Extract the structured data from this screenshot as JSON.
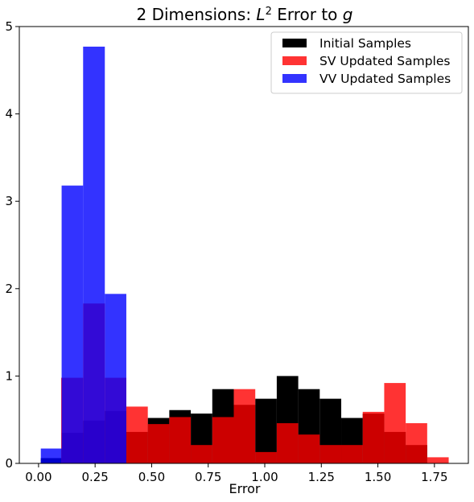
{
  "chart_data": {
    "type": "histogram",
    "title_main": "2 Dimensions: ",
    "title_math_base": "L",
    "title_math_sup": "2",
    "title_suffix": " Error to ",
    "title_math_var": "g",
    "xlabel": "Error",
    "ylabel": "",
    "xlim": [
      -0.085,
      1.9
    ],
    "ylim": [
      0,
      5
    ],
    "x_ticks": [
      0.0,
      0.25,
      0.5,
      0.75,
      1.0,
      1.25,
      1.5,
      1.75
    ],
    "x_tick_labels": [
      "0.00",
      "0.25",
      "0.50",
      "0.75",
      "1.00",
      "1.25",
      "1.50",
      "1.75"
    ],
    "y_ticks": [
      0,
      1,
      2,
      3,
      4,
      5
    ],
    "y_tick_labels": [
      "0",
      "1",
      "2",
      "3",
      "4",
      "5"
    ],
    "grid": false,
    "legend_position": "top-right",
    "series": [
      {
        "name": "Initial Samples",
        "color": "#000000",
        "opacity": 1.0,
        "bins": [
          {
            "x0": 0.01,
            "x1": 0.102,
            "y": 0.06
          },
          {
            "x0": 0.102,
            "x1": 0.197,
            "y": 0.35
          },
          {
            "x0": 0.197,
            "x1": 0.293,
            "y": 0.49
          },
          {
            "x0": 0.293,
            "x1": 0.388,
            "y": 0.6
          },
          {
            "x0": 0.388,
            "x1": 0.483,
            "y": 0.36
          },
          {
            "x0": 0.483,
            "x1": 0.578,
            "y": 0.52
          },
          {
            "x0": 0.578,
            "x1": 0.673,
            "y": 0.61
          },
          {
            "x0": 0.673,
            "x1": 0.768,
            "y": 0.57
          },
          {
            "x0": 0.768,
            "x1": 0.863,
            "y": 0.85
          },
          {
            "x0": 0.863,
            "x1": 0.958,
            "y": 0.67
          },
          {
            "x0": 0.958,
            "x1": 1.053,
            "y": 0.74
          },
          {
            "x0": 1.053,
            "x1": 1.148,
            "y": 1.0
          },
          {
            "x0": 1.148,
            "x1": 1.243,
            "y": 0.85
          },
          {
            "x0": 1.243,
            "x1": 1.338,
            "y": 0.74
          },
          {
            "x0": 1.338,
            "x1": 1.433,
            "y": 0.52
          },
          {
            "x0": 1.433,
            "x1": 1.528,
            "y": 0.57
          },
          {
            "x0": 1.528,
            "x1": 1.623,
            "y": 0.36
          },
          {
            "x0": 1.623,
            "x1": 1.718,
            "y": 0.21
          }
        ]
      },
      {
        "name": "SV Updated Samples",
        "color": "#ff0000",
        "opacity": 0.8,
        "bins": [
          {
            "x0": 0.1,
            "x1": 0.197,
            "y": 0.98
          },
          {
            "x0": 0.197,
            "x1": 0.293,
            "y": 1.83
          },
          {
            "x0": 0.293,
            "x1": 0.388,
            "y": 0.98
          },
          {
            "x0": 0.388,
            "x1": 0.483,
            "y": 0.65
          },
          {
            "x0": 0.483,
            "x1": 0.578,
            "y": 0.45
          },
          {
            "x0": 0.578,
            "x1": 0.673,
            "y": 0.53
          },
          {
            "x0": 0.673,
            "x1": 0.768,
            "y": 0.21
          },
          {
            "x0": 0.768,
            "x1": 0.863,
            "y": 0.53
          },
          {
            "x0": 0.863,
            "x1": 0.958,
            "y": 0.85
          },
          {
            "x0": 0.958,
            "x1": 1.053,
            "y": 0.13
          },
          {
            "x0": 1.053,
            "x1": 1.148,
            "y": 0.46
          },
          {
            "x0": 1.148,
            "x1": 1.243,
            "y": 0.33
          },
          {
            "x0": 1.243,
            "x1": 1.338,
            "y": 0.21
          },
          {
            "x0": 1.338,
            "x1": 1.433,
            "y": 0.21
          },
          {
            "x0": 1.433,
            "x1": 1.528,
            "y": 0.59
          },
          {
            "x0": 1.528,
            "x1": 1.623,
            "y": 0.92
          },
          {
            "x0": 1.623,
            "x1": 1.718,
            "y": 0.46
          },
          {
            "x0": 1.718,
            "x1": 1.813,
            "y": 0.07
          }
        ]
      },
      {
        "name": "VV Updated Samples",
        "color": "#0000ff",
        "opacity": 0.8,
        "bins": [
          {
            "x0": 0.01,
            "x1": 0.102,
            "y": 0.17
          },
          {
            "x0": 0.102,
            "x1": 0.197,
            "y": 3.18
          },
          {
            "x0": 0.197,
            "x1": 0.293,
            "y": 4.77
          },
          {
            "x0": 0.293,
            "x1": 0.388,
            "y": 1.94
          }
        ]
      }
    ]
  }
}
